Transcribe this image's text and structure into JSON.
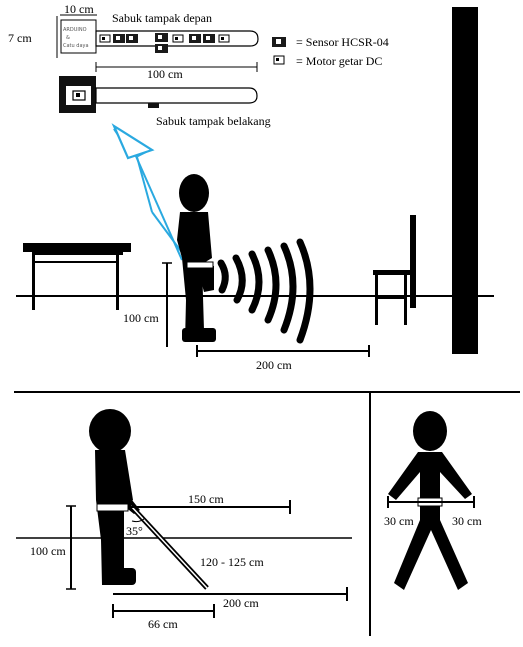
{
  "belt": {
    "front_title": "Sabuk tampak depan",
    "back_title": "Sabuk tampak belakang",
    "width_label": "10 cm",
    "height_label": "7 cm",
    "length_label": "100 cm",
    "controller_label_1": "ARDUINO",
    "controller_label_2": "&",
    "controller_label_3": "Catu daya",
    "legend": [
      {
        "icon": "sensor",
        "text": "= Sensor HCSR-04"
      },
      {
        "icon": "motor",
        "text": "= Motor getar DC"
      }
    ]
  },
  "scene_side": {
    "height_label": "100 cm",
    "range_label": "200 cm"
  },
  "scene_cane": {
    "height_label": "100 cm",
    "angle_label": "35°",
    "range_150": "150 cm",
    "cane_length": "120 - 125 cm",
    "range_200": "200 cm",
    "range_66": "66 cm"
  },
  "scene_front": {
    "left_label": "30 cm",
    "right_label": "30 cm"
  },
  "colors": {
    "ink": "#000000",
    "arrow": "#2aa9e0",
    "sensor_fill": "#1a1a1a",
    "panel_grey": "#d9d9d9"
  }
}
